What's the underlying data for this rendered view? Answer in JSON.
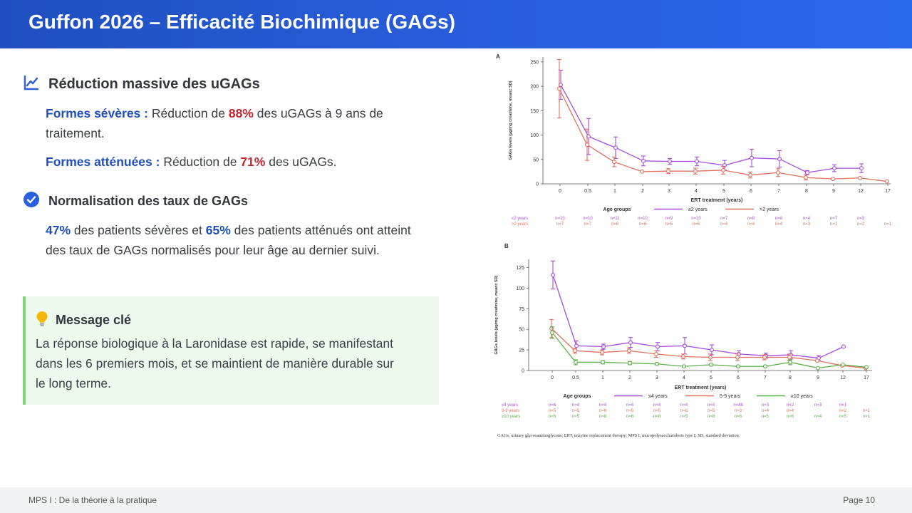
{
  "header": {
    "title": "Guffon 2026 – Efficacité Biochimique (GAGs)"
  },
  "section1": {
    "title": "Réduction massive des uGAGs",
    "icon": "trend-up-icon",
    "p1_label": "Formes sévères :",
    "p1_text_a": " Réduction de ",
    "p1_value": "88%",
    "p1_text_b": " des uGAGs à 9 ans de traitement.",
    "p2_label": "Formes atténuées :",
    "p2_text_a": " Réduction de ",
    "p2_value": "71%",
    "p2_text_b": " des uGAGs."
  },
  "section2": {
    "title": "Normalisation des taux de GAGs",
    "icon": "check-circle-icon",
    "v1": "47%",
    "t1": " des patients sévères et ",
    "v2": "65%",
    "t2": " des patients atténués ont atteint des taux de GAGs normalisés pour leur âge au dernier suivi."
  },
  "key_message": {
    "icon": "lightbulb-icon",
    "title": "Message clé",
    "text": "La réponse biologique à la Laronidase est rapide, se manifestant dans les 6 premiers mois, et se maintient de manière durable sur le long terme."
  },
  "footer": {
    "left": "MPS I : De la théorie à la pratique",
    "right": "Page 10"
  },
  "colors": {
    "purple": "#a64de0",
    "red": "#e0725f",
    "green": "#5fb04a",
    "blue_accent": "#1f4fbf",
    "red_accent": "#c2262e"
  },
  "figure_caption": "GAGs, urinary glycosaminoglycans; ERT, enzyme replacement therapy; MPS I, mucopolysaccharidosis type I; SD, standard deviation.",
  "chart_data": [
    {
      "type": "line",
      "panel": "A",
      "ylabel": "GAGs levels (µg/mg creatinine, mean± SD)",
      "xlabel": "ERT treatment (years)",
      "categories": [
        "0",
        "0.5",
        "1",
        "2",
        "3",
        "4",
        "5",
        "6",
        "7",
        "8",
        "9",
        "12",
        "17"
      ],
      "yticks": [
        0,
        50,
        100,
        150,
        200,
        250
      ],
      "ylim": [
        0,
        260
      ],
      "legend_title": "Age groups",
      "series": [
        {
          "name": "≤2 years",
          "color": "#a64de0",
          "values": [
            203,
            97,
            74,
            47,
            46,
            46,
            38,
            53,
            51,
            23,
            32,
            32,
            null
          ],
          "err": [
            30,
            37,
            22,
            10,
            6,
            9,
            10,
            18,
            17,
            4,
            7,
            9,
            null
          ],
          "n": [
            "n=10",
            "n=10",
            "n=11",
            "n=10",
            "n=9",
            "n=10",
            "n=7",
            "n=8",
            "n=8",
            "n=4",
            "n=7",
            "n=3",
            ""
          ]
        },
        {
          "name": ">2 years",
          "color": "#e0725f",
          "values": [
            195,
            80,
            45,
            25,
            26,
            26,
            28,
            18,
            23,
            13,
            10,
            12,
            5
          ],
          "err": [
            60,
            32,
            10,
            0,
            5,
            6,
            8,
            6,
            8,
            5,
            0,
            0,
            0
          ],
          "n": [
            "n=7",
            "n=7",
            "n=6",
            "n=6",
            "n=5",
            "n=5",
            "n=4",
            "n=4",
            "n=4",
            "n=3",
            "n=1",
            "n=2",
            "n=1"
          ]
        }
      ]
    },
    {
      "type": "line",
      "panel": "B",
      "ylabel": "GAGs levels (µg/mg creatinine, mean± SD)",
      "xlabel": "ERT treatment (years)",
      "categories": [
        "0",
        "0.5",
        "1",
        "2",
        "3",
        "4",
        "5",
        "6",
        "7",
        "8",
        "9",
        "12",
        "17"
      ],
      "yticks": [
        0,
        25,
        50,
        75,
        100,
        125
      ],
      "ylim": [
        0,
        135
      ],
      "legend_title": "Age groups",
      "series": [
        {
          "name": "≤4 years",
          "color": "#a64de0",
          "values": [
            116,
            30,
            29,
            34,
            29,
            30,
            25,
            20,
            18,
            19,
            15,
            29,
            null
          ],
          "err": [
            17,
            6,
            3,
            6,
            5,
            10,
            6,
            4,
            3,
            5,
            3,
            0,
            null
          ],
          "n": [
            "n=6",
            "n=4",
            "n=4",
            "n=4",
            "n=4",
            "n=4",
            "n=4",
            "n=48",
            "n=3",
            "n=2",
            "n=3",
            "n=1",
            ""
          ]
        },
        {
          "name": "5-9 years",
          "color": "#e0725f",
          "values": [
            51,
            24,
            22,
            24,
            20,
            17,
            16,
            16,
            16,
            16,
            12,
            6,
            3
          ],
          "err": [
            11,
            3,
            3,
            3,
            4,
            3,
            4,
            4,
            3,
            4,
            0,
            0,
            0
          ],
          "n": [
            "n=5",
            "n=5",
            "n=6",
            "n=5",
            "n=5",
            "n=6",
            "n=5",
            "n=3",
            "n=4",
            "n=4",
            "",
            "n=2",
            "n=1"
          ]
        },
        {
          "name": "≥10 years",
          "color": "#5fb04a",
          "values": [
            46,
            10,
            10,
            9,
            8,
            5,
            7,
            5,
            5,
            10,
            3,
            7,
            4
          ],
          "err": [
            7,
            3,
            2,
            2,
            1,
            1,
            1,
            1,
            1,
            3,
            0,
            0,
            0
          ],
          "n": [
            "n=6",
            "n=5",
            "n=8",
            "n=6",
            "n=8",
            "n=5",
            "n=8",
            "n=6",
            "n=5",
            "n=6",
            "n=4",
            "n=5",
            "n=1"
          ]
        }
      ]
    }
  ]
}
